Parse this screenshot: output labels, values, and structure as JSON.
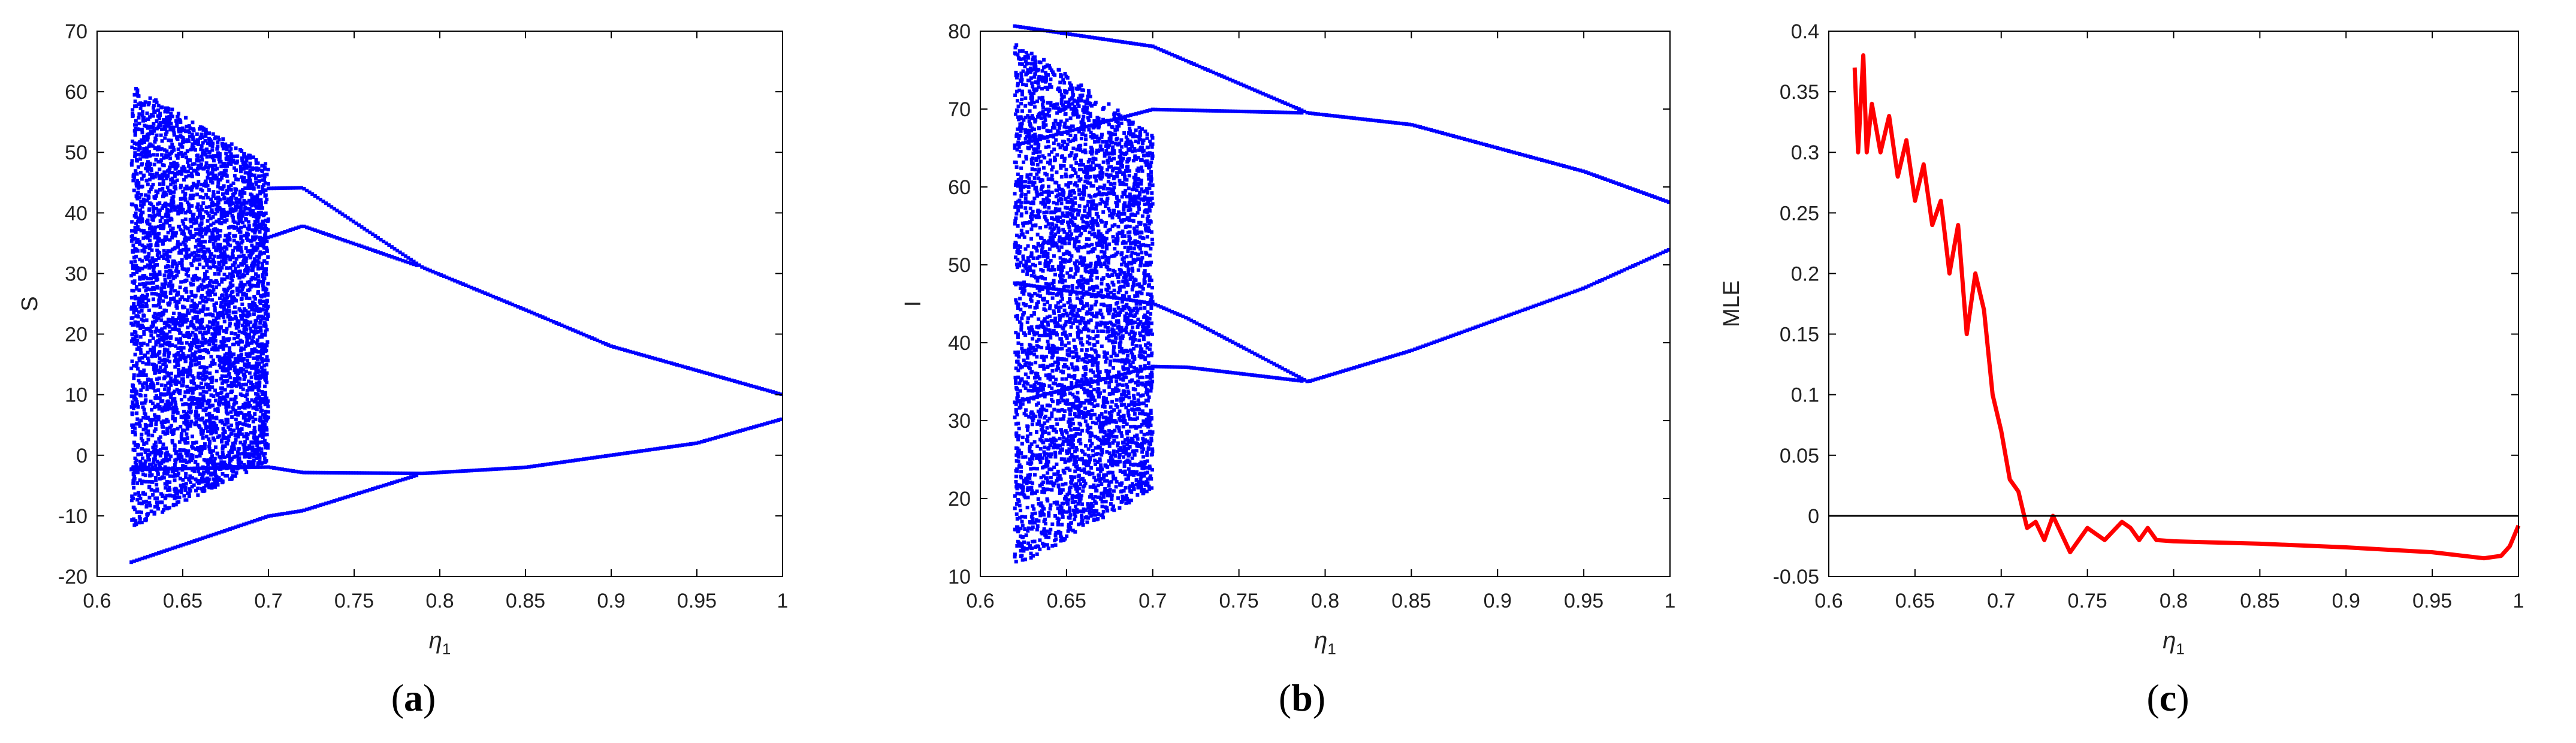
{
  "figure": {
    "panels": [
      {
        "caption_letter": "a"
      },
      {
        "caption_letter": "b"
      },
      {
        "caption_letter": "c"
      }
    ]
  },
  "chart_data": [
    {
      "type": "scatter",
      "title": "",
      "xlabel": "η1",
      "ylabel": "S",
      "xlim": [
        0.6,
        1.0
      ],
      "ylim": [
        -20,
        70
      ],
      "xticks": [
        "0.6",
        "0.65",
        "0.7",
        "0.75",
        "0.8",
        "0.85",
        "0.9",
        "0.95",
        "1"
      ],
      "yticks": [
        "-20",
        "-10",
        "0",
        "10",
        "20",
        "30",
        "40",
        "50",
        "60",
        "70"
      ],
      "grid": false,
      "color": "#0000ff",
      "description_series": [
        {
          "name": "",
          "periodic_branches": [
            {
              "x": [
                0.62,
                0.7,
                0.72,
                0.79,
                0.85,
                0.9,
                0.95,
                1.0
              ],
              "y": [
                22,
                40,
                41,
                31,
                24,
                18,
                14,
                10
              ]
            },
            {
              "x": [
                0.62,
                0.7,
                0.72,
                0.79,
                0.85,
                0.9,
                0.95,
                1.0
              ],
              "y": [
                -10,
                -6,
                -6,
                -3,
                -2,
                0,
                2,
                6
              ]
            }
          ],
          "chaotic_band": {
            "x_range": [
              0.62,
              0.7
            ],
            "y_range": [
              -12,
              61
            ]
          }
        }
      ]
    },
    {
      "type": "scatter",
      "title": "",
      "xlabel": "η1",
      "ylabel": "I",
      "xlim": [
        0.6,
        1.0
      ],
      "ylim": [
        10,
        80
      ],
      "xticks": [
        "0.6",
        "0.65",
        "0.7",
        "0.75",
        "0.8",
        "0.85",
        "0.9",
        "0.95",
        "1"
      ],
      "yticks": [
        "10",
        "20",
        "30",
        "40",
        "50",
        "60",
        "70",
        "80"
      ],
      "grid": false,
      "color": "#0000ff",
      "description_series": [
        {
          "name": "",
          "periodic_branches": [
            {
              "x": [
                0.62,
                0.7,
                0.72,
                0.79,
                0.85,
                0.9,
                0.95,
                1.0
              ],
              "y": [
                73,
                74,
                73,
                69.5,
                68,
                65,
                62,
                58
              ]
            },
            {
              "x": [
                0.62,
                0.7,
                0.72,
                0.79,
                0.85,
                0.9,
                0.95,
                1.0
              ],
              "y": [
                40,
                41,
                40,
                35,
                39,
                43,
                47,
                52
              ]
            }
          ],
          "chaotic_band": {
            "x_range": [
              0.62,
              0.7
            ],
            "y_range": [
              11,
              79
            ]
          }
        }
      ]
    },
    {
      "type": "line",
      "title": "",
      "xlabel": "η1",
      "ylabel": "MLE",
      "xlim": [
        0.6,
        1.0
      ],
      "ylim": [
        -0.05,
        0.4
      ],
      "xticks": [
        "0.6",
        "0.65",
        "0.7",
        "0.75",
        "0.8",
        "0.85",
        "0.9",
        "0.95",
        "1"
      ],
      "yticks": [
        "-0.05",
        "0",
        "0.05",
        "0.1",
        "0.15",
        "0.2",
        "0.25",
        "0.3",
        "0.35",
        "0.4"
      ],
      "grid": false,
      "series": [
        {
          "name": "",
          "color": "#ff0000",
          "x": [
            0.615,
            0.617,
            0.62,
            0.622,
            0.625,
            0.63,
            0.635,
            0.64,
            0.645,
            0.65,
            0.655,
            0.66,
            0.665,
            0.67,
            0.675,
            0.68,
            0.685,
            0.69,
            0.695,
            0.7,
            0.705,
            0.71,
            0.715,
            0.72,
            0.725,
            0.73,
            0.735,
            0.74,
            0.75,
            0.76,
            0.77,
            0.775,
            0.78,
            0.785,
            0.79,
            0.8,
            0.85,
            0.9,
            0.95,
            0.98,
            0.99,
            0.995,
            1.0
          ],
          "y": [
            0.37,
            0.3,
            0.38,
            0.3,
            0.34,
            0.3,
            0.33,
            0.28,
            0.31,
            0.26,
            0.29,
            0.24,
            0.26,
            0.2,
            0.24,
            0.15,
            0.2,
            0.17,
            0.1,
            0.07,
            0.03,
            0.02,
            -0.01,
            -0.005,
            -0.02,
            0.0,
            -0.015,
            -0.03,
            -0.01,
            -0.02,
            -0.005,
            -0.01,
            -0.02,
            -0.01,
            -0.02,
            -0.021,
            -0.023,
            -0.026,
            -0.03,
            -0.035,
            -0.033,
            -0.025,
            -0.008
          ]
        },
        {
          "name": "",
          "color": "#000000",
          "x": [
            0.6,
            1.0
          ],
          "y": [
            0,
            0
          ]
        }
      ]
    }
  ]
}
